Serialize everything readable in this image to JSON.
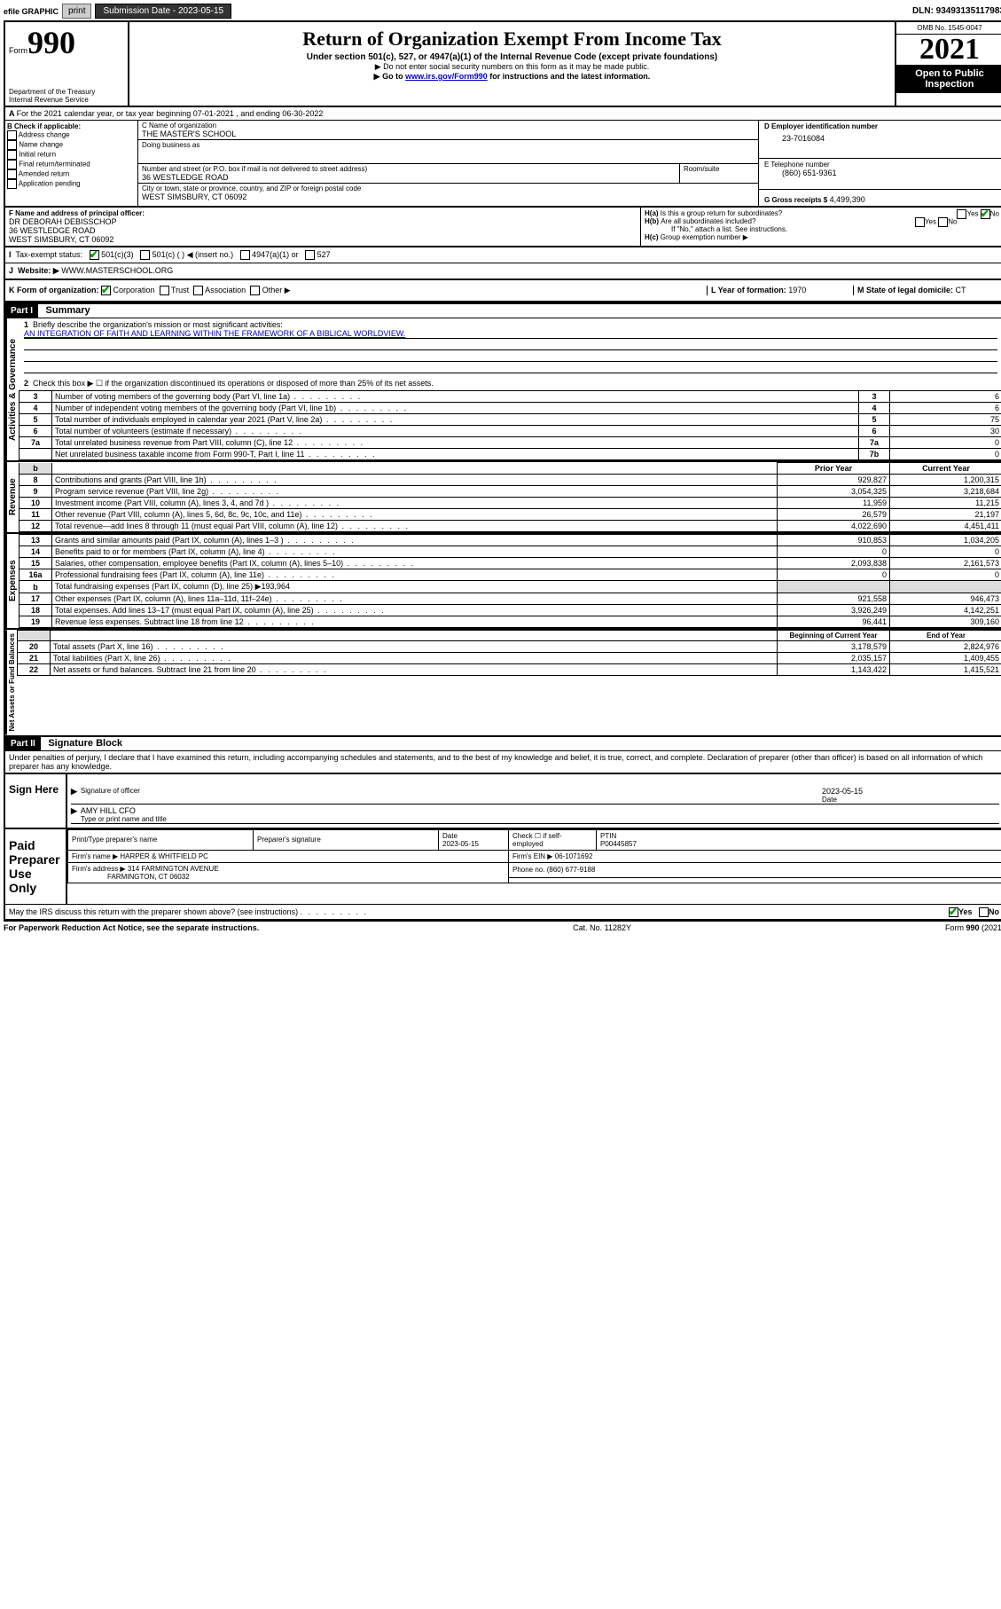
{
  "topbar": {
    "efile": "efile GRAPHIC",
    "print": "print",
    "submission_label": "Submission Date - 2023-05-15",
    "dln": "DLN: 93493135117983"
  },
  "header": {
    "form_label": "Form",
    "form_num": "990",
    "dept": "Department of the Treasury",
    "irs": "Internal Revenue Service",
    "title": "Return of Organization Exempt From Income Tax",
    "sub": "Under section 501(c), 527, or 4947(a)(1) of the Internal Revenue Code (except private foundations)",
    "note1": "▶ Do not enter social security numbers on this form as it may be made public.",
    "note2_pre": "▶ Go to ",
    "note2_link": "www.irs.gov/Form990",
    "note2_post": " for instructions and the latest information.",
    "omb": "OMB No. 1545-0047",
    "year": "2021",
    "open": "Open to Public Inspection"
  },
  "line_a": "For the 2021 calendar year, or tax year beginning 07-01-2021   , and ending 06-30-2022",
  "box_b": {
    "label": "B Check if applicable:",
    "items": [
      "Address change",
      "Name change",
      "Initial return",
      "Final return/terminated",
      "Amended return",
      "Application pending"
    ]
  },
  "box_c": {
    "name_label": "C Name of organization",
    "name": "THE MASTER'S SCHOOL",
    "dba_label": "Doing business as",
    "street_label": "Number and street (or P.O. box if mail is not delivered to street address)",
    "room_label": "Room/suite",
    "street": "36 WESTLEDGE ROAD",
    "city_label": "City or town, state or province, country, and ZIP or foreign postal code",
    "city": "WEST SIMSBURY, CT  06092"
  },
  "box_d": {
    "label": "D Employer identification number",
    "value": "23-7016084"
  },
  "box_e": {
    "label": "E Telephone number",
    "value": "(860) 651-9361"
  },
  "box_g": {
    "label": "G Gross receipts $",
    "value": "4,499,390"
  },
  "box_f": {
    "label": "F Name and address of principal officer:",
    "name": "DR DEBORAH DEBISSCHOP",
    "street": "36 WESTLEDGE ROAD",
    "city": "WEST SIMSBURY, CT  06092"
  },
  "box_h": {
    "ha": "Is this a group return for subordinates?",
    "ha_yes": "Yes",
    "ha_no": "No",
    "hb": "Are all subordinates included?",
    "hb_note": "If \"No,\" attach a list. See instructions.",
    "hc": "Group exemption number ▶"
  },
  "box_i": {
    "label": "Tax-exempt status:",
    "opts": [
      "501(c)(3)",
      "501(c) (  ) ◀ (insert no.)",
      "4947(a)(1) or",
      "527"
    ]
  },
  "box_j": {
    "label": "Website: ▶",
    "value": "WWW.MASTERSCHOOL.ORG"
  },
  "box_k": {
    "label": "K Form of organization:",
    "opts": [
      "Corporation",
      "Trust",
      "Association",
      "Other ▶"
    ]
  },
  "box_l": {
    "label": "L Year of formation:",
    "value": "1970"
  },
  "box_m": {
    "label": "M State of legal domicile:",
    "value": "CT"
  },
  "part1": {
    "label": "Part I",
    "title": "Summary"
  },
  "summary": {
    "q1": "Briefly describe the organization's mission or most significant activities:",
    "mission": "AN INTEGRATION OF FAITH AND LEARNING WITHIN THE FRAMEWORK OF A BIBLICAL WORLDVIEW.",
    "q2": "Check this box ▶ ☐  if the organization discontinued its operations or disposed of more than 25% of its net assets."
  },
  "governance_label": "Activities & Governance",
  "revenue_label": "Revenue",
  "expenses_label": "Expenses",
  "netassets_label": "Net Assets or Fund Balances",
  "governance_rows": [
    {
      "num": "3",
      "desc": "Number of voting members of the governing body (Part VI, line 1a)",
      "box": "3",
      "val": "6"
    },
    {
      "num": "4",
      "desc": "Number of independent voting members of the governing body (Part VI, line 1b)",
      "box": "4",
      "val": "6"
    },
    {
      "num": "5",
      "desc": "Total number of individuals employed in calendar year 2021 (Part V, line 2a)",
      "box": "5",
      "val": "75"
    },
    {
      "num": "6",
      "desc": "Total number of volunteers (estimate if necessary)",
      "box": "6",
      "val": "30"
    },
    {
      "num": "7a",
      "desc": "Total unrelated business revenue from Part VIII, column (C), line 12",
      "box": "7a",
      "val": "0"
    },
    {
      "num": "",
      "desc": "Net unrelated business taxable income from Form 990-T, Part I, line 11",
      "box": "7b",
      "val": "0"
    }
  ],
  "prior_year": "Prior Year",
  "current_year": "Current Year",
  "revenue_rows": [
    {
      "num": "8",
      "desc": "Contributions and grants (Part VIII, line 1h)",
      "prior": "929,827",
      "curr": "1,200,315"
    },
    {
      "num": "9",
      "desc": "Program service revenue (Part VIII, line 2g)",
      "prior": "3,054,325",
      "curr": "3,218,684"
    },
    {
      "num": "10",
      "desc": "Investment income (Part VIII, column (A), lines 3, 4, and 7d )",
      "prior": "11,959",
      "curr": "11,215"
    },
    {
      "num": "11",
      "desc": "Other revenue (Part VIII, column (A), lines 5, 6d, 8c, 9c, 10c, and 11e)",
      "prior": "26,579",
      "curr": "21,197"
    },
    {
      "num": "12",
      "desc": "Total revenue—add lines 8 through 11 (must equal Part VIII, column (A), line 12)",
      "prior": "4,022,690",
      "curr": "4,451,411"
    }
  ],
  "expense_rows": [
    {
      "num": "13",
      "desc": "Grants and similar amounts paid (Part IX, column (A), lines 1–3 )",
      "prior": "910,853",
      "curr": "1,034,205"
    },
    {
      "num": "14",
      "desc": "Benefits paid to or for members (Part IX, column (A), line 4)",
      "prior": "0",
      "curr": "0"
    },
    {
      "num": "15",
      "desc": "Salaries, other compensation, employee benefits (Part IX, column (A), lines 5–10)",
      "prior": "2,093,838",
      "curr": "2,161,573"
    },
    {
      "num": "16a",
      "desc": "Professional fundraising fees (Part IX, column (A), line 11e)",
      "prior": "0",
      "curr": "0"
    }
  ],
  "line16b": {
    "desc": "Total fundraising expenses (Part IX, column (D), line 25) ▶",
    "val": "193,964"
  },
  "expense_rows2": [
    {
      "num": "17",
      "desc": "Other expenses (Part IX, column (A), lines 11a–11d, 11f–24e)",
      "prior": "921,558",
      "curr": "946,473"
    },
    {
      "num": "18",
      "desc": "Total expenses. Add lines 13–17 (must equal Part IX, column (A), line 25)",
      "prior": "3,926,249",
      "curr": "4,142,251"
    },
    {
      "num": "19",
      "desc": "Revenue less expenses. Subtract line 18 from line 12",
      "prior": "96,441",
      "curr": "309,160"
    }
  ],
  "begin_year": "Beginning of Current Year",
  "end_year": "End of Year",
  "asset_rows": [
    {
      "num": "20",
      "desc": "Total assets (Part X, line 16)",
      "prior": "3,178,579",
      "curr": "2,824,976"
    },
    {
      "num": "21",
      "desc": "Total liabilities (Part X, line 26)",
      "prior": "2,035,157",
      "curr": "1,409,455"
    },
    {
      "num": "22",
      "desc": "Net assets or fund balances. Subtract line 21 from line 20",
      "prior": "1,143,422",
      "curr": "1,415,521"
    }
  ],
  "part2": {
    "label": "Part II",
    "title": "Signature Block"
  },
  "penalties": "Under penalties of perjury, I declare that I have examined this return, including accompanying schedules and statements, and to the best of my knowledge and belief, it is true, correct, and complete. Declaration of preparer (other than officer) is based on all information of which preparer has any knowledge.",
  "sign": {
    "here": "Sign Here",
    "sig_officer": "Signature of officer",
    "date": "Date",
    "date_val": "2023-05-15",
    "name": "AMY HILL  CFO",
    "name_label": "Type or print name and title"
  },
  "paid": {
    "label": "Paid Preparer Use Only",
    "cols": [
      "Print/Type preparer's name",
      "Preparer's signature",
      "Date",
      "",
      "PTIN"
    ],
    "date": "2023-05-15",
    "check": "Check ☐ if self-employed",
    "ptin": "P00445857",
    "firm_name_label": "Firm's name    ▶",
    "firm_name": "HARPER & WHITFIELD PC",
    "firm_ein_label": "Firm's EIN ▶",
    "firm_ein": "06-1071692",
    "firm_addr_label": "Firm's address ▶",
    "firm_addr1": "314 FARMINGTON AVENUE",
    "firm_addr2": "FARMINGTON, CT  06032",
    "phone_label": "Phone no.",
    "phone": "(860) 677-9188"
  },
  "discuss": "May the IRS discuss this return with the preparer shown above? (see instructions)",
  "discuss_yes": "Yes",
  "discuss_no": "No",
  "footer": {
    "left": "For Paperwork Reduction Act Notice, see the separate instructions.",
    "mid": "Cat. No. 11282Y",
    "right": "Form 990 (2021)"
  },
  "colors": {
    "link": "#0000cc",
    "check": "#00a000"
  }
}
